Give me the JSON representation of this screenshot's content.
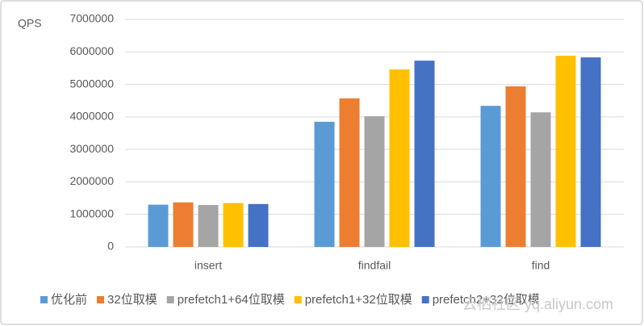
{
  "chart_data": {
    "type": "bar",
    "y_label": "QPS",
    "categories": [
      "insert",
      "findfail",
      "find"
    ],
    "series": [
      {
        "name": "优化前",
        "color": "#5b9bd5",
        "values": [
          1300000,
          3850000,
          4340000
        ]
      },
      {
        "name": "32位取模",
        "color": "#ed7d31",
        "values": [
          1370000,
          4570000,
          4940000
        ]
      },
      {
        "name": "prefetch1+64位取模",
        "color": "#a5a5a5",
        "values": [
          1290000,
          4020000,
          4140000
        ]
      },
      {
        "name": "prefetch1+32位取模",
        "color": "#ffc000",
        "values": [
          1350000,
          5460000,
          5880000
        ]
      },
      {
        "name": "prefetch2+32位取模",
        "color": "#4472c4",
        "values": [
          1320000,
          5730000,
          5830000
        ]
      }
    ],
    "ylim": [
      0,
      7000000
    ],
    "yticks": [
      0,
      1000000,
      2000000,
      3000000,
      4000000,
      5000000,
      6000000,
      7000000
    ],
    "grid": true,
    "legend": "bottom",
    "watermark": "云栖社区 yq.aliyun.com"
  }
}
